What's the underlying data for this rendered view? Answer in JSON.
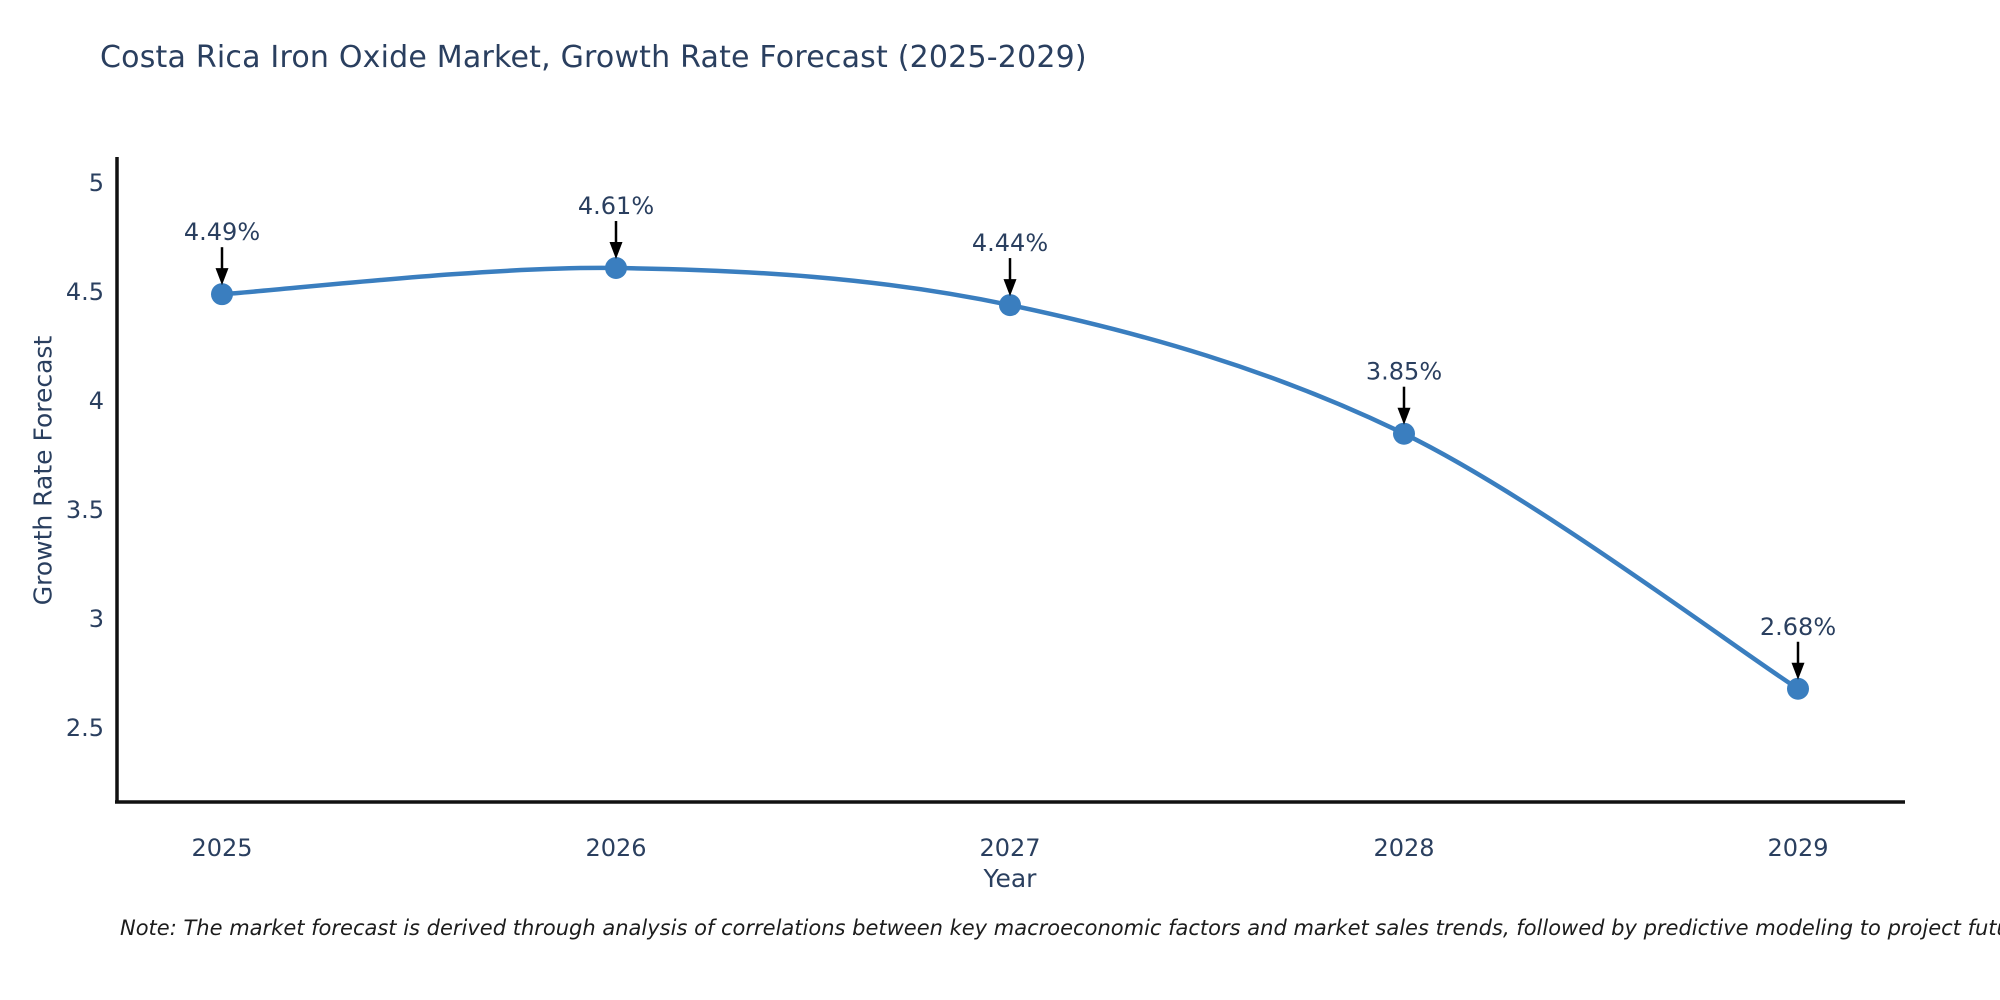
{
  "note": "Note: The market forecast is derived through analysis of correlations between key macroeconomic factors and market sales trends, followed by predictive modeling to project future sales",
  "chart_data": {
    "type": "line",
    "title": "Costa Rica Iron Oxide Market, Growth Rate Forecast (2025-2029)",
    "xlabel": "Year",
    "ylabel": "Growth Rate Forecast",
    "categories": [
      "2025",
      "2026",
      "2027",
      "2028",
      "2029"
    ],
    "values": [
      4.49,
      4.61,
      4.44,
      3.85,
      2.68
    ],
    "data_labels": [
      "4.49%",
      "4.61%",
      "4.44%",
      "3.85%",
      "2.68%"
    ],
    "yticks": [
      "5",
      "4.5",
      "4",
      "3.5",
      "3",
      "2.5"
    ],
    "ytick_values": [
      5,
      4.5,
      4,
      3.5,
      3,
      2.5
    ],
    "ylim": [
      2.16,
      5.12
    ],
    "grid": false,
    "legend": "none",
    "line_shape": "spline",
    "colors": {
      "line": "#3a7ebf",
      "marker": "#3a7ebf",
      "annotation_arrow": "#000000",
      "text": "#2a3f5f",
      "axis_spine": "#111111",
      "note": "#1c1c1c"
    }
  }
}
